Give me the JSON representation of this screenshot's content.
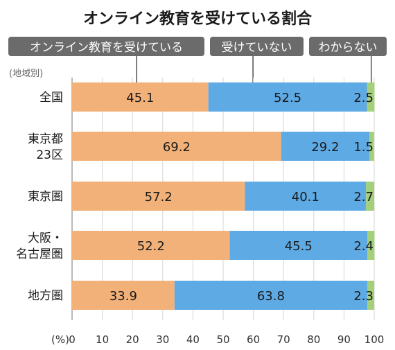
{
  "chart_data": {
    "type": "bar",
    "orientation": "horizontal",
    "stacked": true,
    "title": "オンライン教育を受けている割合",
    "group_header": "(地域別)",
    "axis_unit_label": "(%)",
    "xlim": [
      0,
      100
    ],
    "ticks": [
      "0",
      "10",
      "20",
      "30",
      "40",
      "50",
      "60",
      "70",
      "80",
      "90",
      "100"
    ],
    "grid": true,
    "legend_placement": "top",
    "categories": [
      [
        "全国"
      ],
      [
        "東京都",
        "23区"
      ],
      [
        "東京圏"
      ],
      [
        "大阪・",
        "名古屋圏"
      ],
      [
        "地方圏"
      ]
    ],
    "series": [
      {
        "name": "オンライン教育を受けている",
        "color": "#F2B179",
        "values": [
          45.1,
          69.2,
          57.2,
          52.2,
          33.9
        ]
      },
      {
        "name": "受けていない",
        "color": "#5EAAE5",
        "values": [
          52.5,
          29.2,
          40.1,
          45.5,
          63.8
        ]
      },
      {
        "name": "わからない",
        "color": "#A4D07C",
        "values": [
          2.5,
          1.5,
          2.7,
          2.4,
          2.3
        ]
      }
    ],
    "data_labels": [
      [
        "45.1",
        "52.5",
        "2.5"
      ],
      [
        "69.2",
        "29.2",
        "1.5"
      ],
      [
        "57.2",
        "40.1",
        "2.7"
      ],
      [
        "52.2",
        "45.5",
        "2.4"
      ],
      [
        "33.9",
        "63.8",
        "2.3"
      ]
    ]
  }
}
